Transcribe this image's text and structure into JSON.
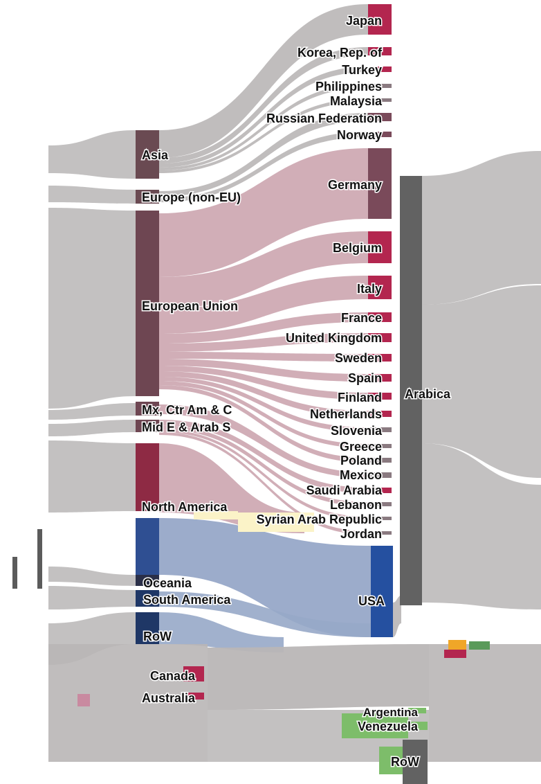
{
  "colors": {
    "flow_grey": "#b9b6b6",
    "flow_pink": "#c9a0aa",
    "flow_blue": "#97a8c8",
    "asia_node": "#6a4a52",
    "eu_node": "#6e4652",
    "north_america_node": "#8e2a44",
    "oceania_node": "#2a2f48",
    "south_america_node": "#1f3766",
    "usa_node": "#2550a0",
    "arabica_node": "#626262",
    "country_node": "#b3264f",
    "green_node": "#7dbd6a"
  },
  "left_nodes": [
    {
      "id": "asia",
      "label": "Asia"
    },
    {
      "id": "europe_non_eu",
      "label": "Europe (non-EU)"
    },
    {
      "id": "eu",
      "label": "European Union"
    },
    {
      "id": "mx",
      "label": "Mx, Ctr Am & C"
    },
    {
      "id": "mide",
      "label": "Mid E & Arab S"
    },
    {
      "id": "north_america",
      "label": "North America"
    },
    {
      "id": "oceania",
      "label": "Oceania"
    },
    {
      "id": "south_america",
      "label": "South America"
    },
    {
      "id": "row_left",
      "label": "RoW"
    }
  ],
  "country_nodes": [
    {
      "id": "japan",
      "label": "Japan"
    },
    {
      "id": "korea",
      "label": "Korea, Rep. of"
    },
    {
      "id": "turkey",
      "label": "Turkey"
    },
    {
      "id": "philippines",
      "label": "Philippines"
    },
    {
      "id": "malaysia",
      "label": "Malaysia"
    },
    {
      "id": "russia",
      "label": "Russian Federation"
    },
    {
      "id": "norway",
      "label": "Norway"
    },
    {
      "id": "germany",
      "label": "Germany"
    },
    {
      "id": "belgium",
      "label": "Belgium"
    },
    {
      "id": "italy",
      "label": "Italy"
    },
    {
      "id": "france",
      "label": "France"
    },
    {
      "id": "uk",
      "label": "United Kingdom"
    },
    {
      "id": "sweden",
      "label": "Sweden"
    },
    {
      "id": "spain",
      "label": "Spain"
    },
    {
      "id": "finland",
      "label": "Finland"
    },
    {
      "id": "netherlands",
      "label": "Netherlands"
    },
    {
      "id": "slovenia",
      "label": "Slovenia"
    },
    {
      "id": "greece",
      "label": "Greece"
    },
    {
      "id": "poland",
      "label": "Poland"
    },
    {
      "id": "mexico",
      "label": "Mexico"
    },
    {
      "id": "saudi",
      "label": "Saudi Arabia"
    },
    {
      "id": "lebanon",
      "label": "Lebanon"
    },
    {
      "id": "syria",
      "label": "Syrian Arab Republic"
    },
    {
      "id": "jordan",
      "label": "Jordan"
    },
    {
      "id": "usa",
      "label": "USA"
    }
  ],
  "bottom_nodes": [
    {
      "id": "canada",
      "label": "Canada"
    },
    {
      "id": "australia",
      "label": "Australia"
    },
    {
      "id": "argentina",
      "label": "Argentina"
    },
    {
      "id": "venezuela",
      "label": "Venezuela"
    },
    {
      "id": "row_right",
      "label": "RoW"
    }
  ],
  "right_nodes": [
    {
      "id": "arabica",
      "label": "Arabica"
    }
  ]
}
